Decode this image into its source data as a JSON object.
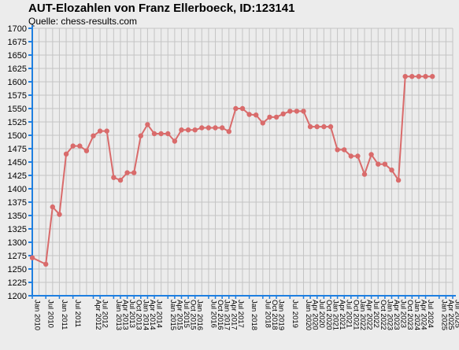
{
  "chart_data": {
    "type": "line",
    "title": "AUT-Elozahlen von Franz Ellerboeck, ID:123141",
    "subtitle": "Quelle: chess-results.com",
    "xlabel": "",
    "ylabel": "",
    "ylim": [
      1200,
      1700
    ],
    "y_ticks": [
      1200,
      1225,
      1250,
      1275,
      1300,
      1325,
      1350,
      1375,
      1400,
      1425,
      1450,
      1475,
      1500,
      1525,
      1550,
      1575,
      1600,
      1625,
      1650,
      1675,
      1700
    ],
    "grid": true,
    "legend": "none",
    "colors": {
      "line": "#d96b6b",
      "background": "#ececec",
      "grid": "#c4c4c4",
      "axis": "#1f7fe0"
    },
    "categories": [
      "Jan 2010",
      "Apr 2010",
      "Jul 2010",
      "Oct 2010",
      "Jan 2011",
      "Apr 2011",
      "Jul 2011",
      "Oct 2011",
      "Jan 2012",
      "Apr 2012",
      "Jul 2012",
      "Oct 2012",
      "Jan 2013",
      "Apr 2013",
      "Jul 2013",
      "Oct 2013",
      "Jan 2014",
      "Apr 2014",
      "Jul 2014",
      "Oct 2014",
      "Jan 2015",
      "Apr 2015",
      "Jul 2015",
      "Oct 2015",
      "Jan 2016",
      "Apr 2016",
      "Jul 2016",
      "Oct 2016",
      "Jan 2017",
      "Apr 2017",
      "Jul 2017",
      "Oct 2017",
      "Jan 2018",
      "Apr 2018",
      "Jul 2018",
      "Oct 2018",
      "Jan 2019",
      "Apr 2019",
      "Jul 2019",
      "Oct 2019",
      "Jan 2020",
      "Apr 2020",
      "Jul 2020",
      "Oct 2020",
      "Jan 2021",
      "Apr 2021",
      "Jul 2021",
      "Oct 2021",
      "Jan 2022",
      "Apr 2022",
      "Jul 2022",
      "Oct 2022",
      "Jan 2023",
      "Apr 2023",
      "Jul 2023",
      "Oct 2023",
      "Jan 2024",
      "Apr 2024",
      "Jul 2024",
      "Oct 2024",
      "Jan 2025",
      "Apr 2025",
      "Jul 2025"
    ],
    "x_tick_labels": [
      "Jan 2010",
      "Jul 2010",
      "Jan 2011",
      "Jul 2011",
      "Apr 2012",
      "Jul 2012",
      "Jan 2013",
      "Apr 2013",
      "Jul 2013",
      "Oct 2013",
      "Jan 2014",
      "Apr 2014",
      "Jul 2014",
      "Jan 2015",
      "Apr 2015",
      "Jul 2015",
      "Oct 2015",
      "Jan 2016",
      "Jul 2016",
      "Oct 2016",
      "Jan 2017",
      "Apr 2017",
      "Jul 2017",
      "Jan 2018",
      "Jul 2018",
      "Oct 2018",
      "Jan 2019",
      "Jul 2019",
      "Jan 2020",
      "Apr 2020",
      "Jul 2020",
      "Oct 2020",
      "Jan 2021",
      "Apr 2021",
      "Jul 2021",
      "Oct 2021",
      "Jan 2022",
      "Apr 2022",
      "Jul 2022",
      "Oct 2022",
      "Jan 2023",
      "Apr 2023",
      "Jul 2023",
      "Oct 2023",
      "Jan 2024",
      "Apr 2024",
      "Jul 2024",
      "Jan 2025",
      "Apr 2025",
      "Jul 2025"
    ],
    "series": [
      {
        "points": [
          [
            "Jan 2010",
            1271
          ],
          [
            "Jul 2010",
            1259
          ],
          [
            "Oct 2010",
            1366
          ],
          [
            "Jan 2011",
            1352
          ],
          [
            "Apr 2011",
            1465
          ],
          [
            "Jul 2011",
            1480
          ],
          [
            "Oct 2011",
            1480
          ],
          [
            "Jan 2012",
            1471
          ],
          [
            "Apr 2012",
            1499
          ],
          [
            "Jul 2012",
            1508
          ],
          [
            "Oct 2012",
            1508
          ],
          [
            "Jan 2013",
            1421
          ],
          [
            "Apr 2013",
            1416
          ],
          [
            "Jul 2013",
            1430
          ],
          [
            "Oct 2013",
            1430
          ],
          [
            "Jan 2014",
            1499
          ],
          [
            "Apr 2014",
            1520
          ],
          [
            "Jul 2014",
            1503
          ],
          [
            "Oct 2014",
            1503
          ],
          [
            "Jan 2015",
            1503
          ],
          [
            "Apr 2015",
            1489
          ],
          [
            "Jul 2015",
            1510
          ],
          [
            "Oct 2015",
            1510
          ],
          [
            "Jan 2016",
            1510
          ],
          [
            "Apr 2016",
            1514
          ],
          [
            "Jul 2016",
            1514
          ],
          [
            "Oct 2016",
            1514
          ],
          [
            "Jan 2017",
            1514
          ],
          [
            "Apr 2017",
            1507
          ],
          [
            "Jul 2017",
            1550
          ],
          [
            "Oct 2017",
            1550
          ],
          [
            "Jan 2018",
            1539
          ],
          [
            "Apr 2018",
            1538
          ],
          [
            "Jul 2018",
            1523
          ],
          [
            "Oct 2018",
            1534
          ],
          [
            "Jan 2019",
            1534
          ],
          [
            "Apr 2019",
            1540
          ],
          [
            "Jul 2019",
            1545
          ],
          [
            "Oct 2019",
            1545
          ],
          [
            "Jan 2020",
            1545
          ],
          [
            "Apr 2020",
            1516
          ],
          [
            "Jul 2020",
            1516
          ],
          [
            "Oct 2020",
            1516
          ],
          [
            "Jan 2021",
            1516
          ],
          [
            "Apr 2021",
            1473
          ],
          [
            "Jul 2021",
            1473
          ],
          [
            "Oct 2021",
            1461
          ],
          [
            "Jan 2022",
            1461
          ],
          [
            "Apr 2022",
            1427
          ],
          [
            "Jul 2022",
            1464
          ],
          [
            "Oct 2022",
            1446
          ],
          [
            "Jan 2023",
            1446
          ],
          [
            "Apr 2023",
            1435
          ],
          [
            "Jul 2023",
            1416
          ],
          [
            "Oct 2023",
            1610
          ],
          [
            "Jan 2024",
            1610
          ],
          [
            "Apr 2024",
            1610
          ],
          [
            "Jul 2024",
            1610
          ],
          [
            "Oct 2024",
            1610
          ]
        ]
      }
    ]
  }
}
